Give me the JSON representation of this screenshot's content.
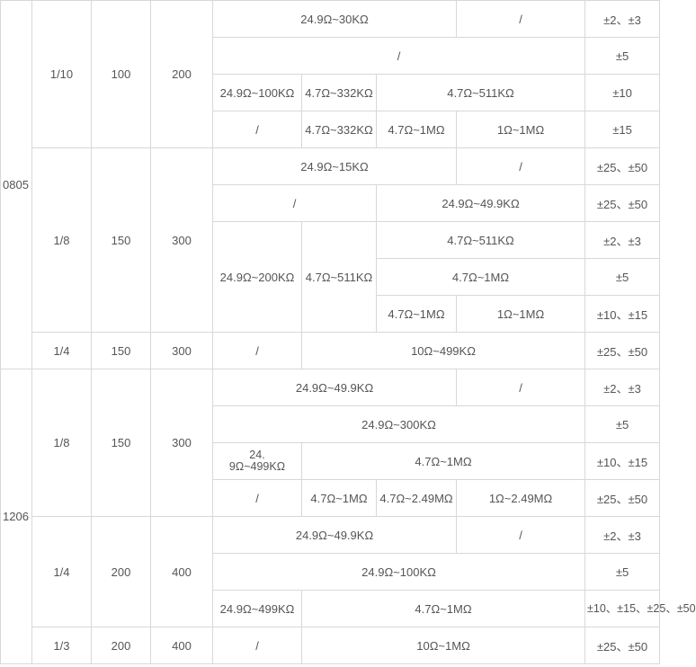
{
  "table": {
    "groups": [
      {
        "size": "0805",
        "subgroups": [
          {
            "power": "1/10",
            "voltage_a": "100",
            "voltage_b": "200",
            "rows": [
              [
                "24.9Ω~30KΩ",
                "/",
                "±2、±3"
              ],
              [
                "/",
                "±5"
              ],
              [
                "24.9Ω~100KΩ",
                "4.7Ω~332KΩ",
                "4.7Ω~511KΩ",
                "±10"
              ],
              [
                "/",
                "4.7Ω~332KΩ",
                "4.7Ω~1MΩ",
                "1Ω~1MΩ",
                "±15"
              ]
            ]
          },
          {
            "power": "1/8",
            "voltage_a": "150",
            "voltage_b": "300",
            "rows": [
              [
                "24.9Ω~15KΩ",
                "/",
                "±25、±50"
              ],
              [
                "/",
                "24.9Ω~49.9KΩ",
                "±25、±50"
              ],
              [
                "24.9Ω~200KΩ",
                "4.7Ω~511KΩ",
                "4.7Ω~511KΩ",
                "±2、±3"
              ],
              [
                "4.7Ω~1MΩ",
                "±5"
              ],
              [
                "4.7Ω~1MΩ",
                "1Ω~1MΩ",
                "±10、±15"
              ]
            ]
          },
          {
            "power": "1/4",
            "voltage_a": "150",
            "voltage_b": "300",
            "rows": [
              [
                "/",
                "10Ω~499KΩ",
                "±25、±50"
              ]
            ]
          }
        ]
      },
      {
        "size": "1206",
        "subgroups": [
          {
            "power": "1/8",
            "voltage_a": "150",
            "voltage_b": "300",
            "rows": [
              [
                "24.9Ω~49.9KΩ",
                "/",
                "±2、±3"
              ],
              [
                "24.9Ω~300KΩ",
                "±5"
              ],
              [
                "24.\n9Ω~499KΩ",
                "4.7Ω~1MΩ",
                "±10、±15"
              ],
              [
                "/",
                "4.7Ω~1MΩ",
                "4.7Ω~2.49MΩ",
                "1Ω~2.49MΩ",
                "±25、±50"
              ]
            ]
          },
          {
            "power": "1/4",
            "voltage_a": "200",
            "voltage_b": "400",
            "rows": [
              [
                "24.9Ω~49.9KΩ",
                "/",
                "±2、±3"
              ],
              [
                "24.9Ω~100KΩ",
                "±5"
              ],
              [
                "24.9Ω~499KΩ",
                "4.7Ω~1MΩ",
                "±10、±15、±25、±50"
              ]
            ]
          },
          {
            "power": "1/3",
            "voltage_a": "200",
            "voltage_b": "400",
            "rows": [
              [
                "/",
                "10Ω~1MΩ",
                "±25、±50"
              ]
            ]
          }
        ]
      }
    ]
  }
}
